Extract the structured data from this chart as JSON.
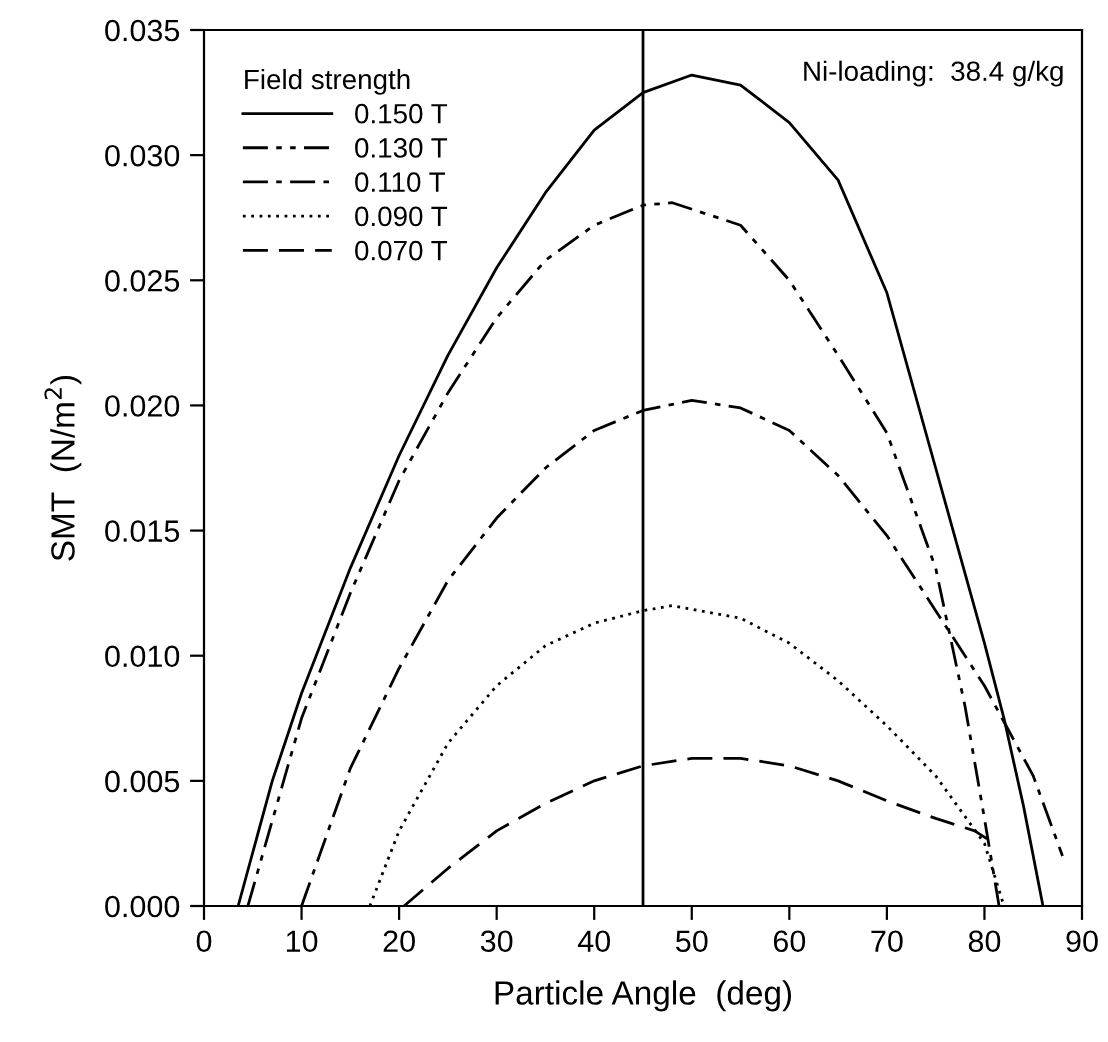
{
  "chart_data": {
    "type": "line",
    "xlabel": "Particle Angle  (deg)",
    "ylabel": "SMT  (N/m$^{2}$)",
    "legend_title": "Field strength",
    "legend": "top left",
    "grid": false,
    "marker": "none",
    "xlim": [
      0,
      90
    ],
    "xticks": [
      0,
      10,
      20,
      30,
      40,
      50,
      60,
      70,
      80,
      90
    ],
    "ylim": [
      0,
      0.035
    ],
    "yticks": [
      {
        "value": 0,
        "label": "0.000"
      },
      {
        "value": 0.005,
        "label": "0.005"
      },
      {
        "value": 0.01,
        "label": "0.010"
      },
      {
        "value": 0.015,
        "label": "0.015"
      },
      {
        "value": 0.02,
        "label": "0.020"
      },
      {
        "value": 0.025,
        "label": "0.025"
      },
      {
        "value": 0.03,
        "label": "0.030"
      },
      {
        "value": 0.035,
        "label": "0.035"
      }
    ],
    "ref_lines": [
      {
        "axis": "x",
        "value": 45,
        "color": "#000000",
        "line_style": "solid"
      }
    ],
    "annotations": [
      "Ni-loading:  38.4 g/kg"
    ],
    "series": [
      {
        "name": "0.150 T",
        "color": "#000000",
        "line_style": "solid",
        "x": [
          3.5,
          7,
          10,
          15,
          20,
          25,
          30,
          35,
          40,
          45,
          50,
          55,
          60,
          65,
          70,
          75,
          80,
          82,
          84,
          86
        ],
        "values": [
          0,
          0.005,
          0.0085,
          0.0135,
          0.018,
          0.022,
          0.0255,
          0.0285,
          0.031,
          0.0325,
          0.0332,
          0.0328,
          0.0313,
          0.029,
          0.0245,
          0.0175,
          0.0105,
          0.0075,
          0.004,
          0
        ]
      },
      {
        "name": "0.130 T",
        "color": "#000000",
        "line_style": "dashdotdot",
        "x": [
          4.5,
          10,
          15,
          20,
          25,
          30,
          35,
          40,
          45,
          48,
          55,
          60,
          65,
          70,
          75,
          78,
          80,
          81.5
        ],
        "values": [
          0,
          0.0075,
          0.0125,
          0.017,
          0.0205,
          0.0235,
          0.0258,
          0.0272,
          0.028,
          0.0281,
          0.0272,
          0.025,
          0.022,
          0.0189,
          0.0135,
          0.008,
          0.0035,
          0
        ]
      },
      {
        "name": "0.110 T",
        "color": "#000000",
        "line_style": "dashdot",
        "x": [
          10,
          15,
          20,
          25,
          30,
          35,
          40,
          45,
          50,
          55,
          60,
          65,
          70,
          75,
          80,
          85,
          88
        ],
        "values": [
          0,
          0.0055,
          0.0095,
          0.013,
          0.0155,
          0.0175,
          0.019,
          0.0198,
          0.0202,
          0.0199,
          0.019,
          0.0172,
          0.0148,
          0.0118,
          0.0088,
          0.0052,
          0.002
        ]
      },
      {
        "name": "0.090 T",
        "color": "#000000",
        "line_style": "dotted",
        "x": [
          17,
          20,
          25,
          30,
          35,
          40,
          45,
          48,
          55,
          60,
          65,
          70,
          75,
          80,
          82
        ],
        "values": [
          0,
          0.003,
          0.0065,
          0.0088,
          0.0104,
          0.0113,
          0.0118,
          0.012,
          0.0115,
          0.0105,
          0.009,
          0.0072,
          0.0052,
          0.0025,
          0
        ]
      },
      {
        "name": "0.070 T",
        "color": "#000000",
        "line_style": "dashed",
        "x": [
          20.5,
          25,
          30,
          35,
          40,
          45,
          50,
          55,
          60,
          65,
          70,
          75,
          79,
          81
        ],
        "values": [
          0,
          0.0015,
          0.003,
          0.0041,
          0.005,
          0.0056,
          0.0059,
          0.0059,
          0.0056,
          0.005,
          0.0042,
          0.0035,
          0.003,
          0.0025
        ]
      }
    ]
  }
}
